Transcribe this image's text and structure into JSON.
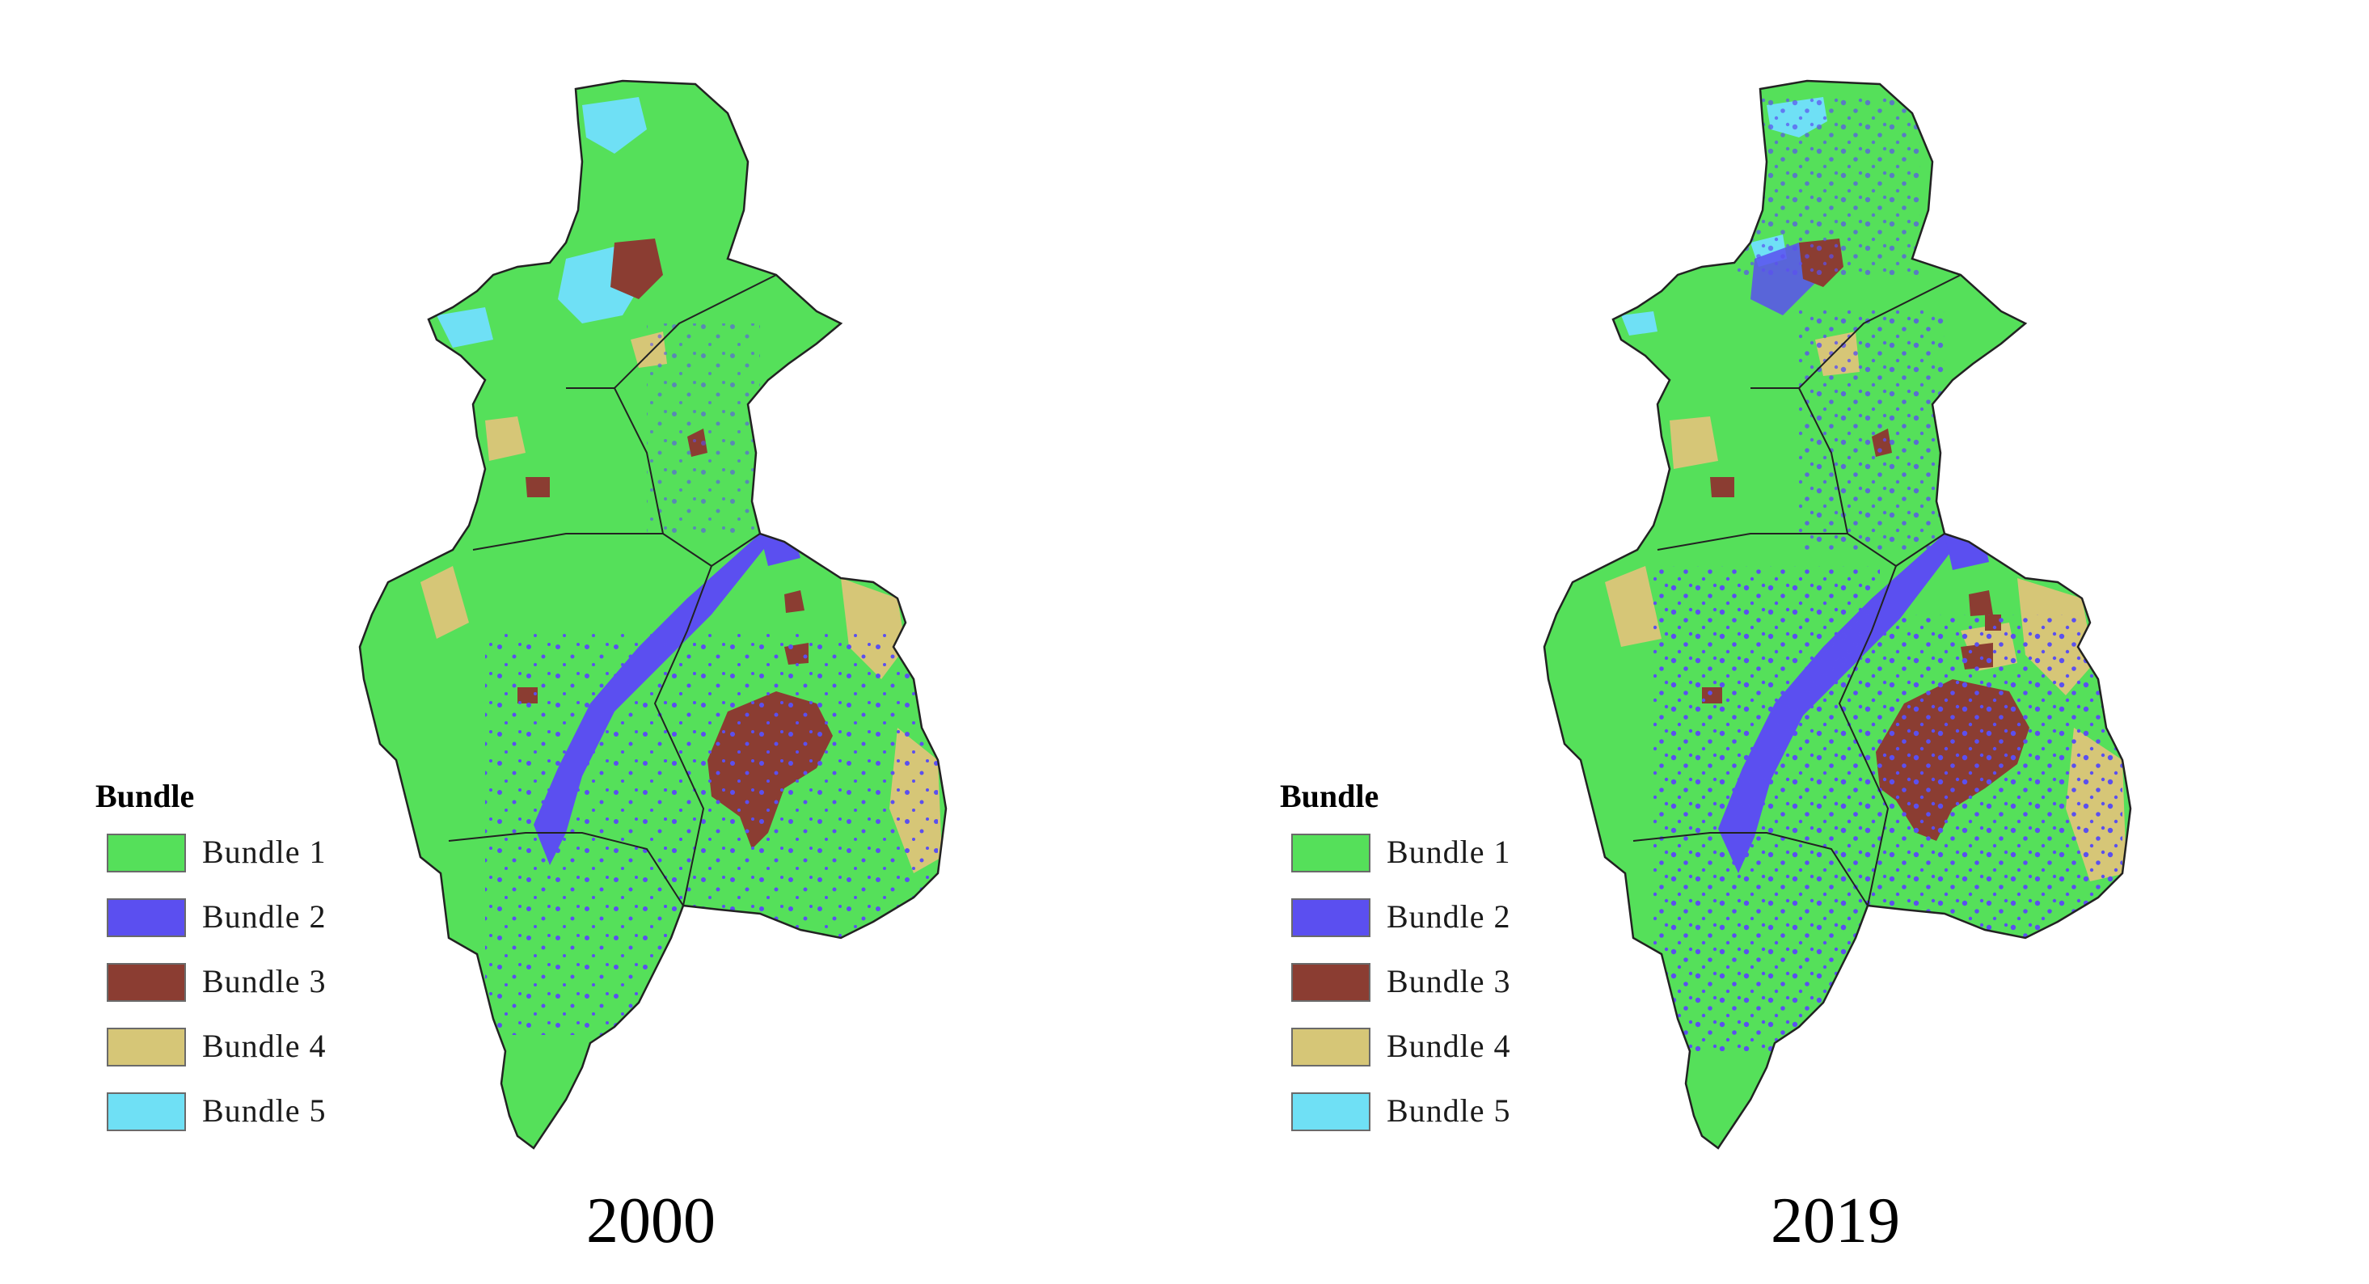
{
  "legend": {
    "title": "Bundle",
    "items": [
      {
        "label": "Bundle 1",
        "color": "#55e05a"
      },
      {
        "label": "Bundle 2",
        "color": "#5b4ff0"
      },
      {
        "label": "Bundle 3",
        "color": "#8b3d32"
      },
      {
        "label": "Bundle 4",
        "color": "#d6c677"
      },
      {
        "label": "Bundle 5",
        "color": "#6fe0f5"
      }
    ]
  },
  "maps": [
    {
      "year": "2000"
    },
    {
      "year": "2019"
    }
  ]
}
